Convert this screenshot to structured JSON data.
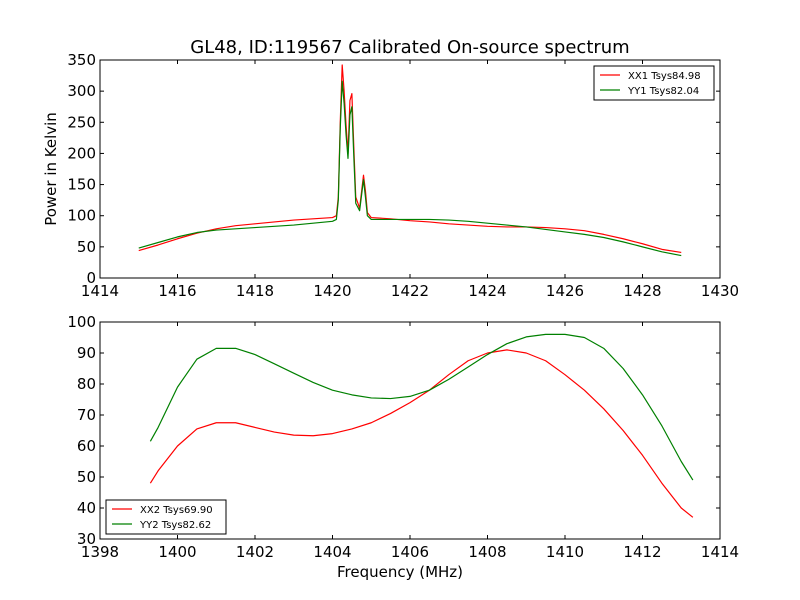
{
  "figure": {
    "title": "GL48, ID:119567 Calibrated On-source spectrum"
  },
  "chart_data": [
    {
      "type": "line",
      "title": "GL48, ID:119567 Calibrated On-source spectrum",
      "xlabel": "",
      "ylabel": "Power in Kelvin",
      "xlim": [
        1414,
        1430
      ],
      "ylim": [
        0,
        350
      ],
      "xticks": [
        1414,
        1416,
        1418,
        1420,
        1422,
        1424,
        1426,
        1428,
        1430
      ],
      "yticks": [
        0,
        50,
        100,
        150,
        200,
        250,
        300,
        350
      ],
      "grid": false,
      "legend_position": "top-right",
      "series": [
        {
          "name": "XX1 Tsys84.98",
          "color": "#ff0000",
          "points": [
            [
              1415.0,
              44
            ],
            [
              1415.5,
              53
            ],
            [
              1416.0,
              63
            ],
            [
              1416.5,
              72
            ],
            [
              1417.0,
              79
            ],
            [
              1417.5,
              84
            ],
            [
              1418.0,
              87
            ],
            [
              1418.5,
              90
            ],
            [
              1419.0,
              93
            ],
            [
              1419.5,
              95
            ],
            [
              1420.0,
              97
            ],
            [
              1420.1,
              100
            ],
            [
              1420.15,
              130
            ],
            [
              1420.2,
              250
            ],
            [
              1420.25,
              342
            ],
            [
              1420.3,
              300
            ],
            [
              1420.35,
              245
            ],
            [
              1420.4,
              200
            ],
            [
              1420.45,
              285
            ],
            [
              1420.5,
              296
            ],
            [
              1420.55,
              210
            ],
            [
              1420.6,
              130
            ],
            [
              1420.7,
              112
            ],
            [
              1420.8,
              165
            ],
            [
              1420.85,
              140
            ],
            [
              1420.9,
              105
            ],
            [
              1421.0,
              97
            ],
            [
              1421.5,
              95
            ],
            [
              1422.0,
              92
            ],
            [
              1422.5,
              90
            ],
            [
              1423.0,
              87
            ],
            [
              1423.5,
              85
            ],
            [
              1424.0,
              83
            ],
            [
              1424.5,
              82
            ],
            [
              1425.0,
              82
            ],
            [
              1425.5,
              81
            ],
            [
              1426.0,
              79
            ],
            [
              1426.5,
              76
            ],
            [
              1427.0,
              70
            ],
            [
              1427.5,
              63
            ],
            [
              1428.0,
              55
            ],
            [
              1428.5,
              46
            ],
            [
              1429.0,
              41
            ]
          ]
        },
        {
          "name": "YY1 Tsys82.04",
          "color": "#008000",
          "points": [
            [
              1415.0,
              48
            ],
            [
              1415.5,
              57
            ],
            [
              1416.0,
              66
            ],
            [
              1416.5,
              73
            ],
            [
              1417.0,
              77
            ],
            [
              1417.5,
              79
            ],
            [
              1418.0,
              81
            ],
            [
              1418.5,
              83
            ],
            [
              1419.0,
              85
            ],
            [
              1419.5,
              88
            ],
            [
              1420.0,
              91
            ],
            [
              1420.1,
              94
            ],
            [
              1420.15,
              125
            ],
            [
              1420.2,
              240
            ],
            [
              1420.25,
              316
            ],
            [
              1420.3,
              280
            ],
            [
              1420.35,
              230
            ],
            [
              1420.4,
              192
            ],
            [
              1420.45,
              262
            ],
            [
              1420.5,
              275
            ],
            [
              1420.55,
              195
            ],
            [
              1420.6,
              120
            ],
            [
              1420.7,
              108
            ],
            [
              1420.8,
              158
            ],
            [
              1420.85,
              130
            ],
            [
              1420.9,
              100
            ],
            [
              1421.0,
              94
            ],
            [
              1421.5,
              94
            ],
            [
              1422.0,
              94
            ],
            [
              1422.5,
              94
            ],
            [
              1423.0,
              93
            ],
            [
              1423.5,
              91
            ],
            [
              1424.0,
              88
            ],
            [
              1424.5,
              85
            ],
            [
              1425.0,
              82
            ],
            [
              1425.5,
              78
            ],
            [
              1426.0,
              74
            ],
            [
              1426.5,
              70
            ],
            [
              1427.0,
              65
            ],
            [
              1427.5,
              58
            ],
            [
              1428.0,
              50
            ],
            [
              1428.5,
              42
            ],
            [
              1429.0,
              36
            ]
          ]
        }
      ]
    },
    {
      "type": "line",
      "title": "",
      "xlabel": "Frequency (MHz)",
      "ylabel": "",
      "xlim": [
        1398,
        1414
      ],
      "ylim": [
        30,
        100
      ],
      "xticks": [
        1398,
        1400,
        1402,
        1404,
        1406,
        1408,
        1410,
        1412,
        1414
      ],
      "yticks": [
        30,
        40,
        50,
        60,
        70,
        80,
        90,
        100
      ],
      "grid": false,
      "legend_position": "bottom-left",
      "series": [
        {
          "name": "XX2 Tsys69.90",
          "color": "#ff0000",
          "points": [
            [
              1399.3,
              48
            ],
            [
              1399.5,
              52
            ],
            [
              1400.0,
              60
            ],
            [
              1400.5,
              65.5
            ],
            [
              1401.0,
              67.5
            ],
            [
              1401.5,
              67.5
            ],
            [
              1402.0,
              66
            ],
            [
              1402.5,
              64.5
            ],
            [
              1403.0,
              63.5
            ],
            [
              1403.5,
              63.3
            ],
            [
              1404.0,
              64
            ],
            [
              1404.5,
              65.5
            ],
            [
              1405.0,
              67.5
            ],
            [
              1405.5,
              70.5
            ],
            [
              1406.0,
              74
            ],
            [
              1406.5,
              78
            ],
            [
              1407.0,
              83
            ],
            [
              1407.5,
              87.5
            ],
            [
              1408.0,
              90
            ],
            [
              1408.5,
              91
            ],
            [
              1409.0,
              90
            ],
            [
              1409.5,
              87.5
            ],
            [
              1410.0,
              83
            ],
            [
              1410.5,
              78
            ],
            [
              1411.0,
              72
            ],
            [
              1411.5,
              65
            ],
            [
              1412.0,
              57
            ],
            [
              1412.5,
              48
            ],
            [
              1413.0,
              40
            ],
            [
              1413.3,
              37
            ]
          ]
        },
        {
          "name": "YY2 Tsys82.62",
          "color": "#008000",
          "points": [
            [
              1399.3,
              61.5
            ],
            [
              1399.5,
              66
            ],
            [
              1400.0,
              79
            ],
            [
              1400.5,
              88
            ],
            [
              1401.0,
              91.5
            ],
            [
              1401.5,
              91.5
            ],
            [
              1402.0,
              89.5
            ],
            [
              1402.5,
              86.5
            ],
            [
              1403.0,
              83.5
            ],
            [
              1403.5,
              80.5
            ],
            [
              1404.0,
              78
            ],
            [
              1404.5,
              76.5
            ],
            [
              1405.0,
              75.5
            ],
            [
              1405.5,
              75.3
            ],
            [
              1406.0,
              76
            ],
            [
              1406.5,
              78
            ],
            [
              1407.0,
              81.5
            ],
            [
              1407.5,
              85.5
            ],
            [
              1408.0,
              89.5
            ],
            [
              1408.5,
              93
            ],
            [
              1409.0,
              95.2
            ],
            [
              1409.5,
              96
            ],
            [
              1410.0,
              96
            ],
            [
              1410.5,
              95
            ],
            [
              1411.0,
              91.5
            ],
            [
              1411.5,
              85
            ],
            [
              1412.0,
              76.5
            ],
            [
              1412.5,
              66.5
            ],
            [
              1413.0,
              55
            ],
            [
              1413.3,
              49
            ]
          ]
        }
      ]
    }
  ]
}
